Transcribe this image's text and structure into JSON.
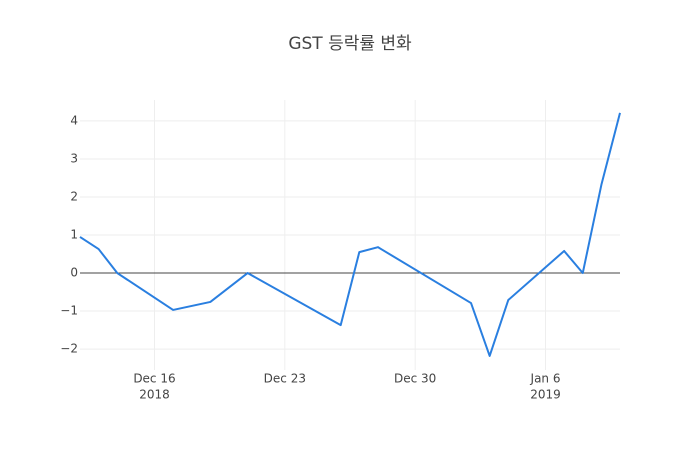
{
  "chart_data": {
    "type": "line",
    "title": "GST 등락률 변화",
    "x": [
      "2018-12-12",
      "2018-12-13",
      "2018-12-14",
      "2018-12-17",
      "2018-12-19",
      "2018-12-21",
      "2018-12-26",
      "2018-12-27",
      "2018-12-28",
      "2019-01-02",
      "2019-01-03",
      "2019-01-04",
      "2019-01-07",
      "2019-01-08",
      "2019-01-09",
      "2019-01-10"
    ],
    "values": [
      0.95,
      0.63,
      0.0,
      -0.97,
      -0.76,
      0.0,
      -1.37,
      0.55,
      0.68,
      -0.79,
      -2.18,
      -0.71,
      0.58,
      0.0,
      2.32,
      4.21
    ],
    "color": "#2a7fe0",
    "xlim": [
      "2018-12-12",
      "2019-01-10"
    ],
    "xticks": [
      {
        "value": "2018-12-16",
        "label": "Dec 16",
        "year": "2018"
      },
      {
        "value": "2018-12-23",
        "label": "Dec 23"
      },
      {
        "value": "2018-12-30",
        "label": "Dec 30"
      },
      {
        "value": "2019-01-06",
        "label": "Jan 6",
        "year": "2019"
      }
    ],
    "ylim": [
      -2.55,
      4.55
    ],
    "yticks": [
      {
        "value": -2,
        "label": "−2"
      },
      {
        "value": -1,
        "label": "−1"
      },
      0,
      1,
      2,
      3,
      4
    ],
    "grid": true
  }
}
